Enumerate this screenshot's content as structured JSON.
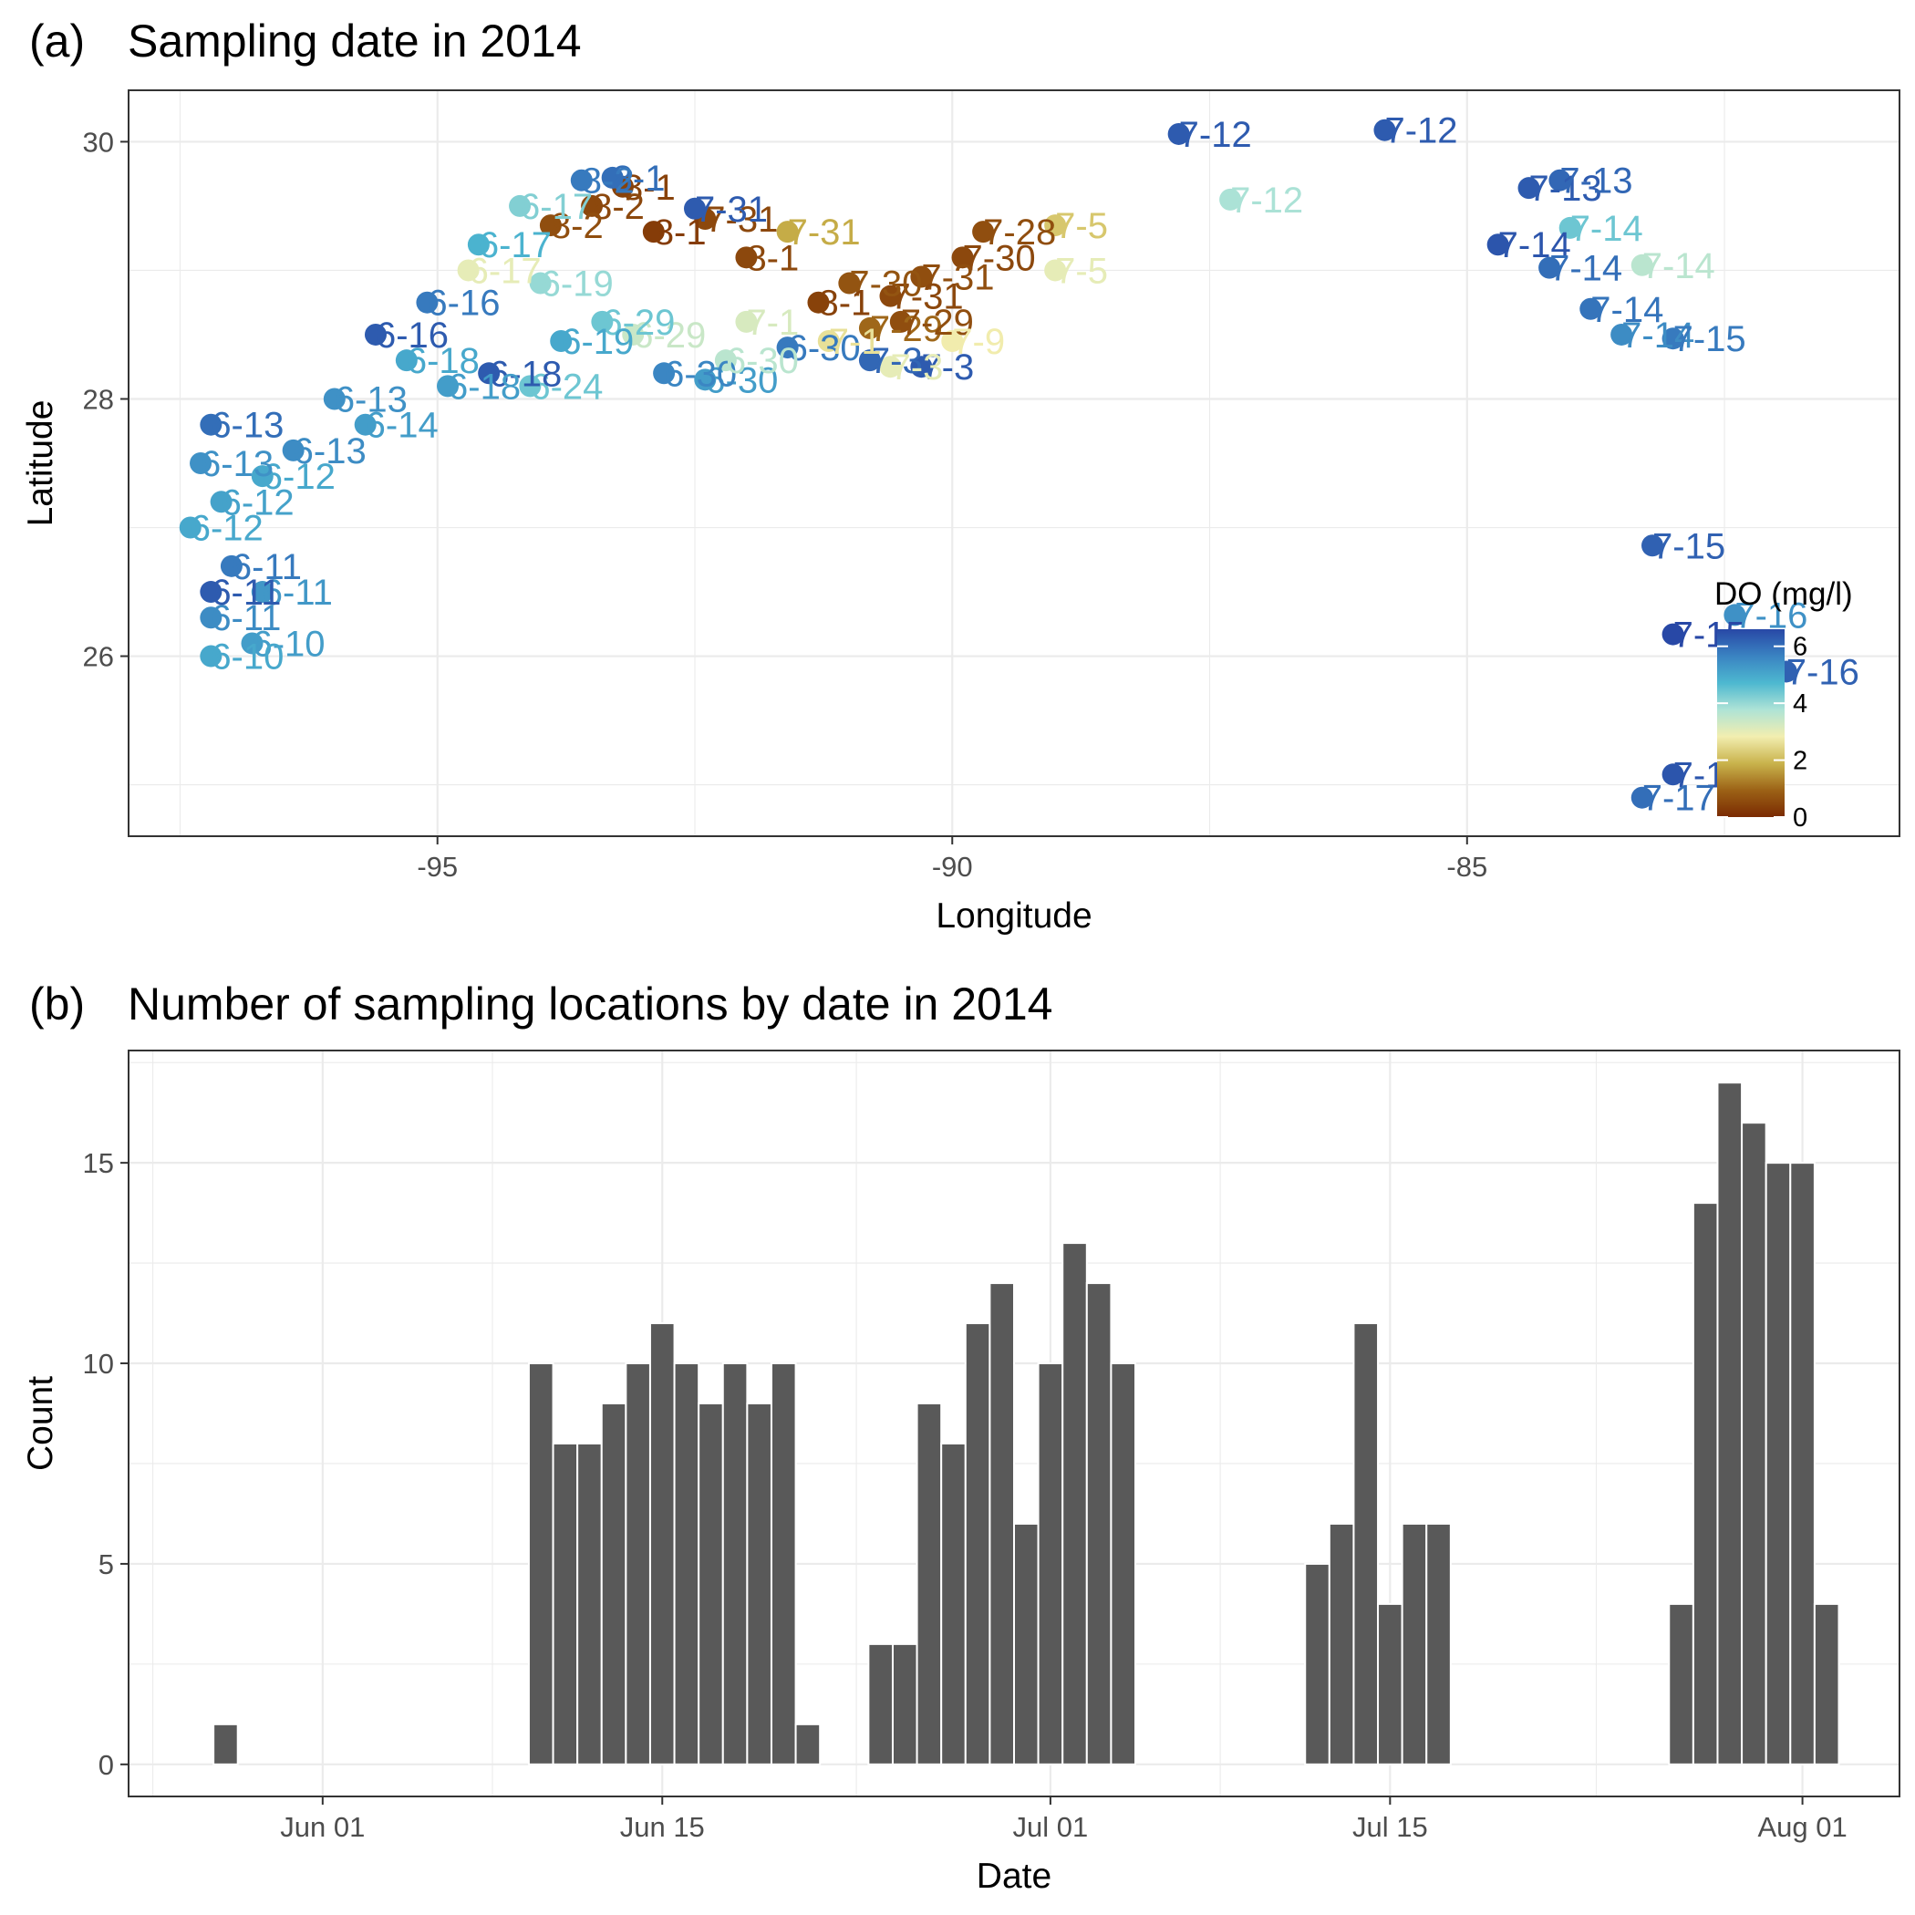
{
  "chart_data": [
    {
      "type": "scatter",
      "panel_tag": "(a)",
      "title": "Sampling date in 2014",
      "xlabel": "Longitude",
      "ylabel": "Latitude",
      "xlim": [
        -98.0,
        -80.8
      ],
      "ylim": [
        24.6,
        30.4
      ],
      "xticks": [
        -95,
        -90,
        -85
      ],
      "xtick_labels": [
        "-95",
        "-90",
        "-85"
      ],
      "yticks": [
        26,
        28,
        30
      ],
      "ytick_labels": [
        "26",
        "28",
        "30"
      ],
      "grid": true,
      "legend": {
        "title": "DO (mg/l)",
        "position": "bottom-right inside",
        "ticks": [
          "0",
          "2",
          "4",
          "6"
        ],
        "range": [
          0,
          6.6
        ],
        "colors": [
          "#7a2a02",
          "#9c6216",
          "#c9b34c",
          "#f2eeb0",
          "#aee3d6",
          "#4db8d0",
          "#3a83c2",
          "#2848a6"
        ]
      },
      "points": [
        {
          "x": -87.8,
          "y": 30.06,
          "do": 6.3,
          "label": "7-12"
        },
        {
          "x": -85.8,
          "y": 30.09,
          "do": 6.3,
          "label": "7-12"
        },
        {
          "x": -87.3,
          "y": 29.55,
          "do": 3.8,
          "label": "7-12"
        },
        {
          "x": -84.4,
          "y": 29.64,
          "do": 6.3,
          "label": "7-13"
        },
        {
          "x": -84.1,
          "y": 29.7,
          "do": 6.1,
          "label": "7-13"
        },
        {
          "x": -84.0,
          "y": 29.33,
          "do": 4.4,
          "label": "7-14"
        },
        {
          "x": -84.7,
          "y": 29.2,
          "do": 6.4,
          "label": "7-14"
        },
        {
          "x": -84.2,
          "y": 29.02,
          "do": 6.0,
          "label": "7-14"
        },
        {
          "x": -83.3,
          "y": 29.04,
          "do": 3.6,
          "label": "7-14"
        },
        {
          "x": -83.8,
          "y": 28.7,
          "do": 5.9,
          "label": "7-14"
        },
        {
          "x": -83.5,
          "y": 28.5,
          "do": 5.5,
          "label": "7-14"
        },
        {
          "x": -83.0,
          "y": 28.47,
          "do": 5.8,
          "label": "7-15"
        },
        {
          "x": -83.2,
          "y": 26.86,
          "do": 6.2,
          "label": "7-15"
        },
        {
          "x": -83.0,
          "y": 26.17,
          "do": 6.6,
          "label": "7-15"
        },
        {
          "x": -82.4,
          "y": 26.32,
          "do": 5.4,
          "label": "7-16"
        },
        {
          "x": -81.9,
          "y": 25.88,
          "do": 6.2,
          "label": "7-16"
        },
        {
          "x": -83.0,
          "y": 25.08,
          "do": 6.4,
          "label": "7-17"
        },
        {
          "x": -83.3,
          "y": 24.9,
          "do": 6.0,
          "label": "7-17"
        },
        {
          "x": -89.0,
          "y": 29.35,
          "do": 2.2,
          "label": "7-5"
        },
        {
          "x": -89.0,
          "y": 29.0,
          "do": 3.0,
          "label": "7-5"
        },
        {
          "x": -89.7,
          "y": 29.3,
          "do": 0.6,
          "label": "7-28"
        },
        {
          "x": -89.9,
          "y": 29.1,
          "do": 0.5,
          "label": "7-30"
        },
        {
          "x": -90.3,
          "y": 28.95,
          "do": 0.6,
          "label": "7-31"
        },
        {
          "x": -90.6,
          "y": 28.8,
          "do": 0.5,
          "label": "7-31"
        },
        {
          "x": -91.0,
          "y": 28.9,
          "do": 0.7,
          "label": "7-30"
        },
        {
          "x": -91.3,
          "y": 28.75,
          "do": 0.4,
          "label": "8-1"
        },
        {
          "x": -91.6,
          "y": 29.3,
          "do": 1.8,
          "label": "7-31"
        },
        {
          "x": -92.0,
          "y": 29.1,
          "do": 0.5,
          "label": "8-1"
        },
        {
          "x": -92.4,
          "y": 29.4,
          "do": 0.5,
          "label": "7-31"
        },
        {
          "x": -92.9,
          "y": 29.3,
          "do": 0.3,
          "label": "8-1"
        },
        {
          "x": -93.2,
          "y": 29.65,
          "do": 0.4,
          "label": "8-1"
        },
        {
          "x": -93.5,
          "y": 29.5,
          "do": 0.5,
          "label": "8-2"
        },
        {
          "x": -93.9,
          "y": 29.35,
          "do": 0.6,
          "label": "8-2"
        },
        {
          "x": -93.3,
          "y": 29.72,
          "do": 6.0,
          "label": "8-1"
        },
        {
          "x": -93.6,
          "y": 29.7,
          "do": 5.8,
          "label": "8-2"
        },
        {
          "x": -92.5,
          "y": 29.48,
          "do": 6.3,
          "label": "7-31"
        },
        {
          "x": -90.8,
          "y": 28.55,
          "do": 1.0,
          "label": "7-29"
        },
        {
          "x": -90.5,
          "y": 28.6,
          "do": 0.6,
          "label": "7-29"
        },
        {
          "x": -90.3,
          "y": 28.25,
          "do": 6.3,
          "label": "7-3"
        },
        {
          "x": -90.0,
          "y": 28.45,
          "do": 2.8,
          "label": "7-9"
        },
        {
          "x": -90.8,
          "y": 28.3,
          "do": 6.1,
          "label": "7-3"
        },
        {
          "x": -91.6,
          "y": 28.4,
          "do": 5.8,
          "label": "6-30"
        },
        {
          "x": -92.4,
          "y": 28.15,
          "do": 5.2,
          "label": "6-30"
        },
        {
          "x": -92.8,
          "y": 28.2,
          "do": 5.6,
          "label": "6-30"
        },
        {
          "x": -93.1,
          "y": 28.5,
          "do": 3.4,
          "label": "6-29"
        },
        {
          "x": -93.4,
          "y": 28.6,
          "do": 4.4,
          "label": "6-29"
        },
        {
          "x": -93.8,
          "y": 28.45,
          "do": 5.0,
          "label": "6-19"
        },
        {
          "x": -94.1,
          "y": 28.1,
          "do": 4.4,
          "label": "6-24"
        },
        {
          "x": -94.5,
          "y": 28.2,
          "do": 6.3,
          "label": "6-18"
        },
        {
          "x": -94.9,
          "y": 28.1,
          "do": 5.2,
          "label": "6-18"
        },
        {
          "x": -95.3,
          "y": 28.3,
          "do": 5.0,
          "label": "6-18"
        },
        {
          "x": -95.7,
          "y": 27.8,
          "do": 5.2,
          "label": "6-14"
        },
        {
          "x": -96.0,
          "y": 28.0,
          "do": 5.4,
          "label": "6-13"
        },
        {
          "x": -96.4,
          "y": 27.6,
          "do": 5.5,
          "label": "6-13"
        },
        {
          "x": -96.7,
          "y": 27.4,
          "do": 5.0,
          "label": "6-12"
        },
        {
          "x": -97.1,
          "y": 27.2,
          "do": 5.1,
          "label": "6-12"
        },
        {
          "x": -97.3,
          "y": 27.5,
          "do": 5.4,
          "label": "6-13"
        },
        {
          "x": -97.4,
          "y": 27.0,
          "do": 5.0,
          "label": "6-12"
        },
        {
          "x": -97.0,
          "y": 26.7,
          "do": 5.8,
          "label": "6-11"
        },
        {
          "x": -96.7,
          "y": 26.5,
          "do": 5.3,
          "label": "6-11"
        },
        {
          "x": -97.2,
          "y": 26.3,
          "do": 5.5,
          "label": "6-11"
        },
        {
          "x": -96.8,
          "y": 26.1,
          "do": 5.2,
          "label": "6-10"
        },
        {
          "x": -97.2,
          "y": 26.0,
          "do": 5.0,
          "label": "6-10"
        },
        {
          "x": -97.2,
          "y": 26.5,
          "do": 6.3,
          "label": "6-11"
        },
        {
          "x": -97.2,
          "y": 27.8,
          "do": 6.0,
          "label": "6-13"
        },
        {
          "x": -95.6,
          "y": 28.5,
          "do": 6.3,
          "label": "6-16"
        },
        {
          "x": -95.1,
          "y": 28.75,
          "do": 5.8,
          "label": "6-16"
        },
        {
          "x": -94.6,
          "y": 29.2,
          "do": 4.8,
          "label": "6-17"
        },
        {
          "x": -94.2,
          "y": 29.5,
          "do": 4.2,
          "label": "6-17"
        },
        {
          "x": -94.7,
          "y": 29.0,
          "do": 3.0,
          "label": "6-17"
        },
        {
          "x": -94.0,
          "y": 28.9,
          "do": 4.0,
          "label": "6-19"
        },
        {
          "x": -92.2,
          "y": 28.3,
          "do": 3.6,
          "label": "6-30"
        },
        {
          "x": -92.0,
          "y": 28.6,
          "do": 3.2,
          "label": "7-1"
        },
        {
          "x": -91.2,
          "y": 28.45,
          "do": 2.6,
          "label": "7-1"
        },
        {
          "x": -90.6,
          "y": 28.25,
          "do": 3.0,
          "label": "7-3"
        }
      ]
    },
    {
      "type": "bar",
      "panel_tag": "(b)",
      "title": "Number of sampling locations by date in 2014",
      "xlabel": "Date",
      "ylabel": "Count",
      "ylim": [
        -0.8,
        17.8
      ],
      "yticks": [
        0,
        5,
        10,
        15
      ],
      "ytick_labels": [
        "0",
        "5",
        "10",
        "15"
      ],
      "xticks": [
        "2014-06-01",
        "2014-06-15",
        "2014-07-01",
        "2014-07-15",
        "2014-08-01"
      ],
      "xtick_labels": [
        "Jun 01",
        "Jun 15",
        "Jul 01",
        "Jul 15",
        "Aug 01"
      ],
      "xlim": [
        "2014-05-24",
        "2014-08-05"
      ],
      "grid": true,
      "dates": [
        "2014-05-28",
        "2014-06-10",
        "2014-06-11",
        "2014-06-12",
        "2014-06-13",
        "2014-06-14",
        "2014-06-15",
        "2014-06-16",
        "2014-06-17",
        "2014-06-18",
        "2014-06-19",
        "2014-06-20",
        "2014-06-21",
        "2014-06-24",
        "2014-06-25",
        "2014-06-26",
        "2014-06-27",
        "2014-06-28",
        "2014-06-29",
        "2014-06-30",
        "2014-07-01",
        "2014-07-02",
        "2014-07-03",
        "2014-07-04",
        "2014-07-12",
        "2014-07-13",
        "2014-07-14",
        "2014-07-15",
        "2014-07-16",
        "2014-07-17",
        "2014-07-27",
        "2014-07-28",
        "2014-07-29",
        "2014-07-30",
        "2014-07-31",
        "2014-08-01",
        "2014-08-02"
      ],
      "values": [
        1,
        10,
        8,
        8,
        9,
        10,
        11,
        10,
        9,
        10,
        9,
        10,
        1,
        3,
        3,
        9,
        8,
        11,
        12,
        6,
        10,
        13,
        12,
        10,
        5,
        6,
        11,
        4,
        6,
        6,
        4,
        14,
        17,
        16,
        15,
        15,
        4
      ]
    }
  ]
}
